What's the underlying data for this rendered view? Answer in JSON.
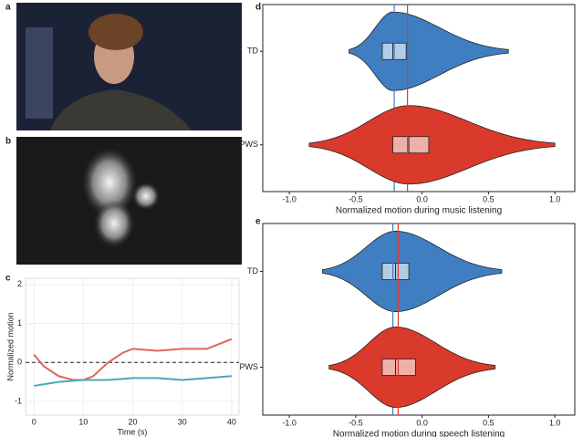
{
  "panel_labels": [
    "a",
    "b",
    "c",
    "d",
    "e"
  ],
  "chart_data": [
    {
      "type": "line",
      "xlabel": "Time (s)",
      "ylabel": "Normalized motion",
      "xlim": [
        -1.7,
        41.5
      ],
      "ylim": [
        -1.35,
        2.16
      ],
      "xticks": [
        0,
        10,
        20,
        30,
        40
      ],
      "yticks": [
        -1,
        0,
        1,
        2
      ],
      "hline": 0,
      "series": [
        {
          "color": "#e0665a",
          "x": [
            0,
            2,
            5,
            8,
            10,
            12,
            15,
            18,
            20,
            25,
            30,
            35,
            40
          ],
          "values": [
            0.2,
            -0.1,
            -0.35,
            -0.45,
            -0.45,
            -0.35,
            0,
            0.25,
            0.35,
            0.3,
            0.35,
            0.35,
            0.6
          ]
        },
        {
          "color": "#4aa8b8",
          "x": [
            0,
            5,
            10,
            15,
            20,
            25,
            30,
            35,
            40
          ],
          "values": [
            -0.6,
            -0.5,
            -0.45,
            -0.45,
            -0.4,
            -0.4,
            -0.45,
            -0.4,
            -0.35
          ]
        }
      ]
    },
    {
      "type": "violin",
      "xlabel": "Normalized motion during music listening",
      "xlim": [
        -1.2,
        1.15
      ],
      "xticks": [
        {
          "value": -1,
          "label": "-1.0"
        },
        {
          "value": -0.5,
          "label": "-0.5"
        },
        {
          "value": 0,
          "label": "0.0"
        },
        0.5,
        {
          "value": 1,
          "label": "1.0"
        }
      ],
      "categories": [
        "TD",
        "PWS"
      ],
      "series": [
        {
          "color": "#3f7fc1",
          "q1": -0.3,
          "median": -0.22,
          "q3": -0.12,
          "mean": -0.21,
          "range": [
            -0.55,
            0.65
          ]
        },
        {
          "color": "#d93a2b",
          "q1": -0.22,
          "median": -0.1,
          "q3": 0.05,
          "mean": -0.11,
          "range": [
            -0.85,
            1.0
          ]
        }
      ]
    },
    {
      "type": "violin",
      "xlabel": "Normalized motion during speech listening",
      "xlim": [
        -1.2,
        1.15
      ],
      "xticks": [
        {
          "value": -1,
          "label": "-1.0"
        },
        {
          "value": -0.5,
          "label": "-0.5"
        },
        {
          "value": 0,
          "label": "0.0"
        },
        0.5,
        {
          "value": 1,
          "label": "1.0"
        }
      ],
      "categories": [
        "TD",
        "PWS"
      ],
      "series": [
        {
          "color": "#3f7fc1",
          "q1": -0.3,
          "median": -0.2,
          "q3": -0.1,
          "mean": -0.22,
          "range": [
            -0.75,
            0.6
          ]
        },
        {
          "color": "#d93a2b",
          "q1": -0.3,
          "median": -0.2,
          "q3": -0.05,
          "mean": -0.18,
          "range": [
            -0.7,
            0.55
          ]
        }
      ]
    }
  ]
}
